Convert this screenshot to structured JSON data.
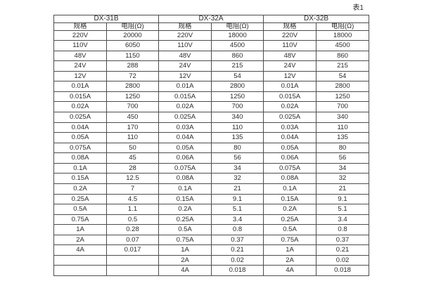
{
  "page_label": "表1",
  "table": {
    "groups": [
      {
        "name": "DX-31B",
        "spec_header": "规格",
        "res_header": "电阻(Ω)",
        "rows": [
          [
            "220V",
            "20000"
          ],
          [
            "110V",
            "6050"
          ],
          [
            "48V",
            "1150"
          ],
          [
            "24V",
            "288"
          ],
          [
            "12V",
            "72"
          ],
          [
            "0.01A",
            "2800"
          ],
          [
            "0.015A",
            "1250"
          ],
          [
            "0.02A",
            "700"
          ],
          [
            "0.025A",
            "450"
          ],
          [
            "0.04A",
            "170"
          ],
          [
            "0.05A",
            "110"
          ],
          [
            "0.075A",
            "50"
          ],
          [
            "0.08A",
            "45"
          ],
          [
            "0.1A",
            "28"
          ],
          [
            "0.15A",
            "12.5"
          ],
          [
            "0.2A",
            "7"
          ],
          [
            "0.25A",
            "4.5"
          ],
          [
            "0.5A",
            "1.1"
          ],
          [
            "0.75A",
            "0.5"
          ],
          [
            "1A",
            "0.28"
          ],
          [
            "2A",
            "0.07"
          ],
          [
            "4A",
            "0.017"
          ],
          [
            "",
            ""
          ],
          [
            "",
            ""
          ]
        ]
      },
      {
        "name": "DX-32A",
        "spec_header": "规格",
        "res_header": "电阻(Ω)",
        "rows": [
          [
            "220V",
            "18000"
          ],
          [
            "110V",
            "4500"
          ],
          [
            "48V",
            "860"
          ],
          [
            "24V",
            "215"
          ],
          [
            "12V",
            "54"
          ],
          [
            "0.01A",
            "2800"
          ],
          [
            "0.015A",
            "1250"
          ],
          [
            "0.02A",
            "700"
          ],
          [
            "0.025A",
            "340"
          ],
          [
            "0.03A",
            "110"
          ],
          [
            "0.04A",
            "135"
          ],
          [
            "0.05A",
            "80"
          ],
          [
            "0.06A",
            "56"
          ],
          [
            "0.075A",
            "34"
          ],
          [
            "0.08A",
            "32"
          ],
          [
            "0.1A",
            "21"
          ],
          [
            "0.15A",
            "9.1"
          ],
          [
            "0.2A",
            "5.1"
          ],
          [
            "0.25A",
            "3.4"
          ],
          [
            "0.5A",
            "0.8"
          ],
          [
            "0.75A",
            "0.37"
          ],
          [
            "1A",
            "0.21"
          ],
          [
            "2A",
            "0.02"
          ],
          [
            "4A",
            "0.018"
          ]
        ]
      },
      {
        "name": "DX-32B",
        "spec_header": "规格",
        "res_header": "电阻(Ω)",
        "rows": [
          [
            "220V",
            "18000"
          ],
          [
            "110V",
            "4500"
          ],
          [
            "48V",
            "860"
          ],
          [
            "24V",
            "215"
          ],
          [
            "12V",
            "54"
          ],
          [
            "0.01A",
            "2800"
          ],
          [
            "0.015A",
            "1250"
          ],
          [
            "0.02A",
            "700"
          ],
          [
            "0.025A",
            "340"
          ],
          [
            "0.03A",
            "110"
          ],
          [
            "0.04A",
            "135"
          ],
          [
            "0.05A",
            "80"
          ],
          [
            "0.06A",
            "56"
          ],
          [
            "0.075A",
            "34"
          ],
          [
            "0.08A",
            "32"
          ],
          [
            "0.1A",
            "21"
          ],
          [
            "0.15A",
            "9.1"
          ],
          [
            "0.2A",
            "5.1"
          ],
          [
            "0.25A",
            "3.4"
          ],
          [
            "0.5A",
            "0.8"
          ],
          [
            "0.75A",
            "0.37"
          ],
          [
            "1A",
            "0.21"
          ],
          [
            "2A",
            "0.02"
          ],
          [
            "4A",
            "0.018"
          ]
        ]
      }
    ]
  }
}
